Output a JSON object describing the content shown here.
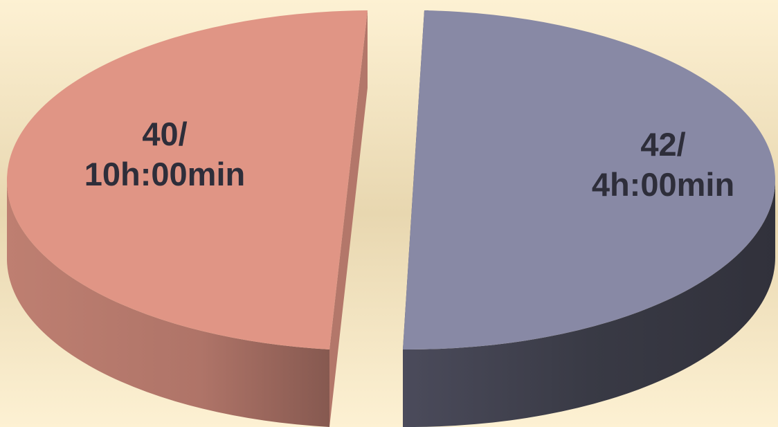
{
  "chart_data": {
    "type": "pie",
    "style": "3d-exploded",
    "slices": [
      {
        "label_line1": "40/",
        "label_line2": "10h:00min",
        "value": 40,
        "color": "#e09585"
      },
      {
        "label_line1": "42/",
        "label_line2": "4h:00min",
        "value": 42,
        "color": "#8889a5"
      }
    ]
  },
  "colors": {
    "background_top": "#fdf1d3",
    "background_band": "#e8d7b0",
    "label_text": "#2e2e3a"
  }
}
